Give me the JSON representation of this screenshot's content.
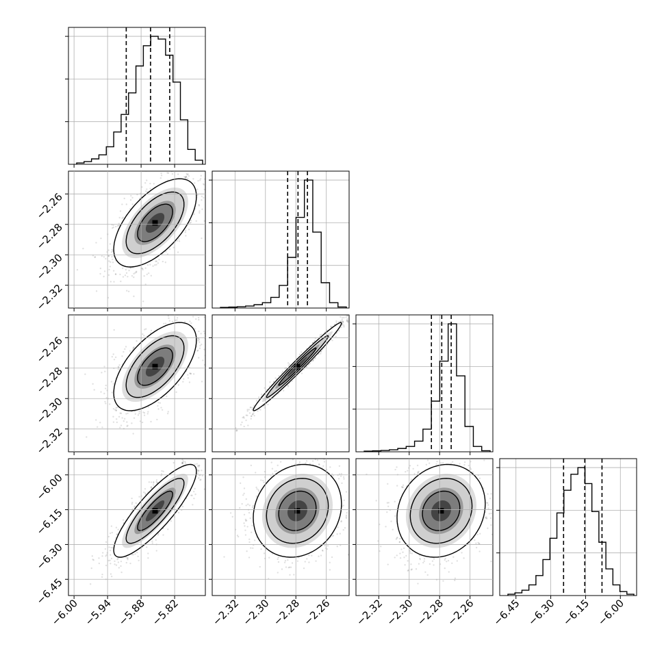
{
  "chart_data": {
    "type": "corner",
    "title": "",
    "grid": true,
    "parameters": [
      {
        "ticks": [
          -6.0,
          -5.94,
          -5.88,
          -5.82
        ],
        "tick_labels": [
          "−6.00",
          "−5.94",
          "−5.88",
          "−5.82"
        ],
        "range": [
          -6.01,
          -5.765
        ]
      },
      {
        "ticks": [
          -2.32,
          -2.3,
          -2.28,
          -2.26
        ],
        "tick_labels": [
          "−2.32",
          "−2.30",
          "−2.28",
          "−2.26"
        ],
        "range": [
          -2.335,
          -2.245
        ]
      },
      {
        "ticks": [
          -2.32,
          -2.3,
          -2.28,
          -2.26
        ],
        "tick_labels": [
          "−2.32",
          "−2.30",
          "−2.28",
          "−2.26"
        ],
        "range": [
          -2.335,
          -2.245
        ]
      },
      {
        "ticks": [
          -6.45,
          -6.3,
          -6.15,
          -6.0
        ],
        "tick_labels": [
          "−6.45",
          "−6.30",
          "−6.15",
          "−6.00"
        ],
        "range": [
          -6.52,
          -5.93
        ]
      }
    ],
    "histograms": [
      {
        "counts": [
          1,
          2,
          4,
          7,
          13,
          24,
          37,
          53,
          73,
          88,
          95,
          93,
          81,
          61,
          33,
          11,
          3
        ],
        "quantiles": [
          -5.9066,
          -5.8631,
          -5.8288
        ]
      },
      {
        "counts": [
          0.5,
          0.7,
          1,
          1.5,
          2.5,
          4,
          8,
          17,
          38,
          68,
          96,
          57,
          19,
          4,
          0.8
        ],
        "quantiles": [
          -2.2854,
          -2.2786,
          -2.2724
        ]
      },
      {
        "counts": [
          0.5,
          0.7,
          1,
          1.5,
          2.5,
          4,
          8,
          17,
          38,
          68,
          96,
          57,
          19,
          4,
          0.8
        ],
        "quantiles": [
          -2.2854,
          -2.2786,
          -2.2724
        ]
      },
      {
        "counts": [
          1,
          2,
          4,
          8,
          15,
          27,
          43,
          62,
          79,
          91,
          96,
          84,
          63,
          40,
          20,
          8,
          3,
          1
        ],
        "quantiles": [
          -6.2448,
          -6.1534,
          -6.0792
        ]
      }
    ],
    "pairs": [
      {
        "row": 1,
        "col": 0,
        "mean": [
          -5.855,
          -2.279
        ],
        "sd": [
          0.037,
          0.0145
        ],
        "corr": 0.6
      },
      {
        "row": 2,
        "col": 0,
        "mean": [
          -5.855,
          -2.279
        ],
        "sd": [
          0.037,
          0.0145
        ],
        "corr": 0.6
      },
      {
        "row": 2,
        "col": 1,
        "mean": [
          -2.279,
          -2.279
        ],
        "sd": [
          0.0145,
          0.0145
        ],
        "corr": 0.985
      },
      {
        "row": 3,
        "col": 0,
        "mean": [
          -5.855,
          -6.155
        ],
        "sd": [
          0.037,
          0.1
        ],
        "corr": 0.85
      },
      {
        "row": 3,
        "col": 1,
        "mean": [
          -2.279,
          -6.155
        ],
        "sd": [
          0.0145,
          0.1
        ],
        "corr": 0.15
      },
      {
        "row": 3,
        "col": 2,
        "mean": [
          -2.279,
          -6.155
        ],
        "sd": [
          0.0145,
          0.1
        ],
        "corr": 0.15
      }
    ]
  }
}
